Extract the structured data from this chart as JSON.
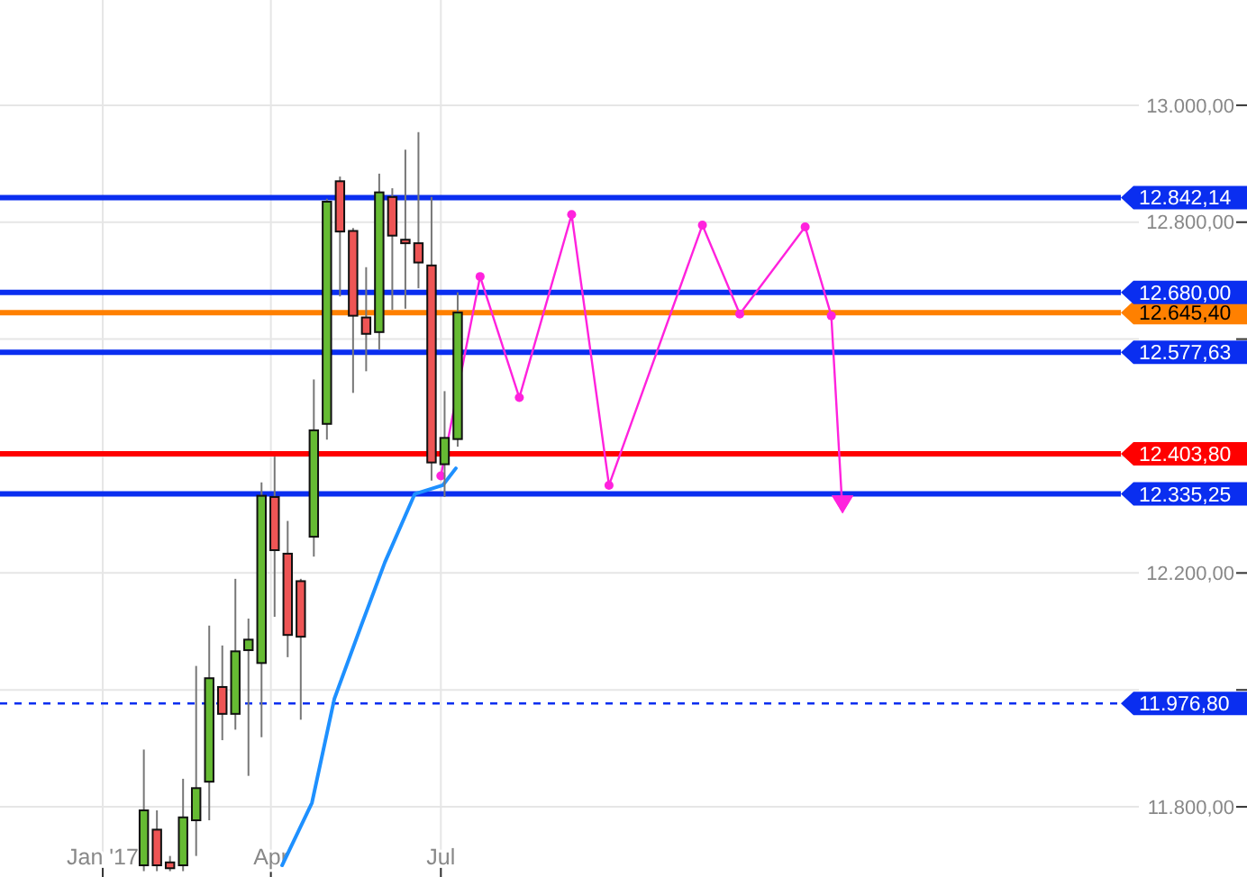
{
  "chart_data": {
    "type": "candlestick",
    "x": [
      "2017-01-23",
      "2017-01-30",
      "2017-02-06",
      "2017-02-13",
      "2017-02-20",
      "2017-02-27",
      "2017-03-06",
      "2017-03-13",
      "2017-03-20",
      "2017-03-27",
      "2017-04-03",
      "2017-04-10",
      "2017-04-17",
      "2017-04-24",
      "2017-05-01",
      "2017-05-08",
      "2017-05-15",
      "2017-05-22",
      "2017-05-29",
      "2017-06-05",
      "2017-06-12",
      "2017-06-19",
      "2017-06-26",
      "2017-07-03",
      "2017-07-10"
    ],
    "ohlc": [
      [
        11700,
        11898,
        11690,
        11794
      ],
      [
        11761,
        11794,
        11690,
        11700
      ],
      [
        11705,
        11716,
        11690,
        11695
      ],
      [
        11700,
        11848,
        11690,
        11782
      ],
      [
        11777,
        12041,
        11716,
        11832
      ],
      [
        11843,
        12110,
        11777,
        12020
      ],
      [
        12005,
        12076,
        11914,
        11959
      ],
      [
        11959,
        12190,
        11932,
        12066
      ],
      [
        12068,
        12122,
        11853,
        12086
      ],
      [
        12046,
        12355,
        11919,
        12332
      ],
      [
        12330,
        12399,
        12125,
        12239
      ],
      [
        12233,
        12289,
        12056,
        12094
      ],
      [
        12186,
        12190,
        11949,
        12091
      ],
      [
        12262,
        12531,
        12228,
        12444
      ],
      [
        12455,
        12840,
        12428,
        12835
      ],
      [
        12870,
        12878,
        12673,
        12784
      ],
      [
        12785,
        12790,
        12508,
        12640
      ],
      [
        12637,
        12723,
        12545,
        12609
      ],
      [
        12612,
        12883,
        12582,
        12851
      ],
      [
        12843,
        12858,
        12650,
        12777
      ],
      [
        12770,
        12924,
        12652,
        12764
      ],
      [
        12764,
        12954,
        12687,
        12731
      ],
      [
        12726,
        12843,
        12358,
        12389
      ],
      [
        12386,
        12511,
        12330,
        12431
      ],
      [
        12429,
        12680,
        12416,
        12645.4
      ]
    ],
    "colors": [
      "#66bb33",
      "#ee5555",
      "#ee5555",
      "#66bb33",
      "#66bb33",
      "#66bb33",
      "#ee5555",
      "#66bb33",
      "#66bb33",
      "#66bb33",
      "#ee5555",
      "#ee5555",
      "#ee5555",
      "#66bb33",
      "#66bb33",
      "#ee5555",
      "#ee5555",
      "#ee5555",
      "#66bb33",
      "#ee5555",
      "#ee5555",
      "#ee5555",
      "#ee5555",
      "#66bb33",
      "#66bb33"
    ],
    "series": [
      {
        "type": "line",
        "color": "#1e90ff",
        "x": [
          "2017-04-07",
          "2017-04-23",
          "2017-05-05",
          "2017-05-19",
          "2017-06-01",
          "2017-06-17",
          "2017-07-02",
          "2017-07-09"
        ],
        "values": [
          11700,
          11807,
          11985,
          12107,
          12218,
          12335,
          12350,
          12379
        ]
      },
      {
        "type": "line",
        "color": "#ff22dd",
        "marker": "circle",
        "x": [
          "2017-07-01",
          "2017-07-22",
          "2017-08-12",
          "2017-09-09",
          "2017-09-29",
          "2017-11-18",
          "2017-12-08",
          "2018-01-12",
          "2018-01-26",
          "2018-02-01"
        ],
        "values": [
          12366,
          12707,
          12500,
          12813,
          12350,
          12795,
          12643,
          12792,
          12640,
          12305
        ]
      }
    ],
    "ref_lines": [
      {
        "axis": "y",
        "value": 12842.14,
        "label": "12.842,14",
        "color": "#0a2ef0"
      },
      {
        "axis": "y",
        "value": 12680,
        "label": "12.680,00",
        "color": "#0a2ef0"
      },
      {
        "axis": "y",
        "value": 12645.4,
        "label": "12.645,40",
        "color": "#ff8000"
      },
      {
        "axis": "y",
        "value": 12577.63,
        "label": "12.577,63",
        "color": "#0a2ef0"
      },
      {
        "axis": "y",
        "value": 12403.8,
        "label": "12.403,80",
        "color": "#ff0000"
      },
      {
        "axis": "y",
        "value": 12335.25,
        "label": "12.335,25",
        "color": "#0a2ef0"
      },
      {
        "axis": "y",
        "value": 11976.8,
        "label": "11.976,80",
        "color": "#0a2ef0",
        "line_style": "dashed"
      }
    ],
    "xlim": [
      "2016-11-07",
      "2018-06-30"
    ],
    "xticks": [
      {
        "value": "2017-01-01",
        "label": "Jan '17"
      },
      {
        "value": "2017-04-01",
        "label": "Apr"
      },
      {
        "value": "2017-07-01",
        "label": "Jul"
      }
    ],
    "ylim": [
      11680,
      13180
    ],
    "yticks": [
      {
        "value": 11800,
        "label": "11.800,00"
      },
      {
        "value": 12000,
        "label": null
      },
      {
        "value": 12200,
        "label": "12.200,00"
      },
      {
        "value": 12400,
        "label": null
      },
      {
        "value": 12600,
        "label": null
      },
      {
        "value": 12800,
        "label": "12.800,00"
      },
      {
        "value": 13000,
        "label": "13.000,00"
      }
    ],
    "grid": true
  }
}
